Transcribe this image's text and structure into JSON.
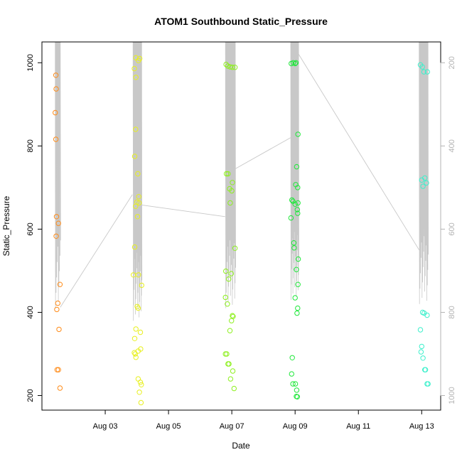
{
  "chart_data": {
    "type": "scatter",
    "title": "ATOM1 Southbound Static_Pressure",
    "xlabel": "Date",
    "ylabel": "Static_Pressure",
    "x_ticks": [
      {
        "label": "Aug 03",
        "value": 3
      },
      {
        "label": "Aug 05",
        "value": 5
      },
      {
        "label": "Aug 07",
        "value": 7
      },
      {
        "label": "Aug 09",
        "value": 9
      },
      {
        "label": "Aug 11",
        "value": 11
      },
      {
        "label": "Aug 13",
        "value": 13
      }
    ],
    "xlim": [
      1.0,
      13.6
    ],
    "ylim": [
      165,
      1050
    ],
    "y_ticks": [
      200,
      400,
      600,
      800,
      1000
    ],
    "secondary_axis": {
      "reversed": true,
      "lim": [
        1050,
        165
      ],
      "ticks": [
        200,
        400,
        600,
        800,
        1000
      ],
      "color": "#b3b3b3"
    },
    "grid": false,
    "legend": "none",
    "series": [
      {
        "color": "#ff8c1a",
        "points": [
          {
            "x": 1.44,
            "y": 970
          },
          {
            "x": 1.45,
            "y": 937
          },
          {
            "x": 1.42,
            "y": 880
          },
          {
            "x": 1.44,
            "y": 816
          },
          {
            "x": 1.46,
            "y": 630
          },
          {
            "x": 1.52,
            "y": 614
          },
          {
            "x": 1.45,
            "y": 583
          },
          {
            "x": 1.57,
            "y": 467
          },
          {
            "x": 1.5,
            "y": 422
          },
          {
            "x": 1.47,
            "y": 407
          },
          {
            "x": 1.54,
            "y": 359
          },
          {
            "x": 1.48,
            "y": 262
          },
          {
            "x": 1.52,
            "y": 262
          },
          {
            "x": 1.57,
            "y": 218
          }
        ]
      },
      {
        "color": "#e8f01f",
        "points": [
          {
            "x": 3.97,
            "y": 1012
          },
          {
            "x": 4.09,
            "y": 1010
          },
          {
            "x": 4.05,
            "y": 1005
          },
          {
            "x": 3.92,
            "y": 986
          },
          {
            "x": 3.97,
            "y": 965
          },
          {
            "x": 3.96,
            "y": 840
          },
          {
            "x": 3.93,
            "y": 775
          },
          {
            "x": 4.03,
            "y": 733
          },
          {
            "x": 4.06,
            "y": 678
          },
          {
            "x": 4.0,
            "y": 665
          },
          {
            "x": 4.07,
            "y": 663
          },
          {
            "x": 3.96,
            "y": 655
          },
          {
            "x": 4.02,
            "y": 630
          },
          {
            "x": 3.93,
            "y": 557
          },
          {
            "x": 3.89,
            "y": 490
          },
          {
            "x": 4.05,
            "y": 490
          },
          {
            "x": 4.15,
            "y": 465
          },
          {
            "x": 4.01,
            "y": 414
          },
          {
            "x": 4.04,
            "y": 410
          },
          {
            "x": 3.97,
            "y": 360
          },
          {
            "x": 4.11,
            "y": 352
          },
          {
            "x": 3.93,
            "y": 337
          },
          {
            "x": 4.12,
            "y": 312
          },
          {
            "x": 3.92,
            "y": 303
          },
          {
            "x": 3.95,
            "y": 300
          },
          {
            "x": 4.04,
            "y": 307
          },
          {
            "x": 3.97,
            "y": 292
          },
          {
            "x": 4.04,
            "y": 240
          },
          {
            "x": 4.11,
            "y": 232
          },
          {
            "x": 4.14,
            "y": 226
          },
          {
            "x": 4.08,
            "y": 208
          },
          {
            "x": 4.13,
            "y": 183
          }
        ]
      },
      {
        "color": "#8ef01f",
        "points": [
          {
            "x": 6.82,
            "y": 996
          },
          {
            "x": 6.87,
            "y": 992
          },
          {
            "x": 6.95,
            "y": 990
          },
          {
            "x": 7.02,
            "y": 989
          },
          {
            "x": 7.1,
            "y": 989
          },
          {
            "x": 6.83,
            "y": 733
          },
          {
            "x": 6.88,
            "y": 733
          },
          {
            "x": 7.02,
            "y": 712
          },
          {
            "x": 6.93,
            "y": 697
          },
          {
            "x": 7.0,
            "y": 692
          },
          {
            "x": 6.95,
            "y": 663
          },
          {
            "x": 7.1,
            "y": 554
          },
          {
            "x": 6.81,
            "y": 499
          },
          {
            "x": 6.98,
            "y": 493
          },
          {
            "x": 6.9,
            "y": 480
          },
          {
            "x": 6.8,
            "y": 436
          },
          {
            "x": 6.86,
            "y": 420
          },
          {
            "x": 7.02,
            "y": 392
          },
          {
            "x": 7.04,
            "y": 390
          },
          {
            "x": 6.99,
            "y": 380
          },
          {
            "x": 6.94,
            "y": 356
          },
          {
            "x": 6.8,
            "y": 300
          },
          {
            "x": 6.84,
            "y": 300
          },
          {
            "x": 6.88,
            "y": 276
          },
          {
            "x": 6.91,
            "y": 276
          },
          {
            "x": 7.03,
            "y": 259
          },
          {
            "x": 6.96,
            "y": 240
          },
          {
            "x": 7.07,
            "y": 217
          }
        ]
      },
      {
        "color": "#1fe83a",
        "points": [
          {
            "x": 8.88,
            "y": 998
          },
          {
            "x": 8.94,
            "y": 1000
          },
          {
            "x": 9.0,
            "y": 998
          },
          {
            "x": 9.03,
            "y": 1000
          },
          {
            "x": 9.09,
            "y": 828
          },
          {
            "x": 9.05,
            "y": 750
          },
          {
            "x": 9.02,
            "y": 707
          },
          {
            "x": 9.08,
            "y": 700
          },
          {
            "x": 8.9,
            "y": 670
          },
          {
            "x": 8.93,
            "y": 667
          },
          {
            "x": 9.09,
            "y": 663
          },
          {
            "x": 9.0,
            "y": 660
          },
          {
            "x": 9.07,
            "y": 647
          },
          {
            "x": 9.08,
            "y": 638
          },
          {
            "x": 8.87,
            "y": 627
          },
          {
            "x": 8.96,
            "y": 567
          },
          {
            "x": 8.97,
            "y": 555
          },
          {
            "x": 9.1,
            "y": 528
          },
          {
            "x": 9.04,
            "y": 503
          },
          {
            "x": 9.09,
            "y": 467
          },
          {
            "x": 9.0,
            "y": 435
          },
          {
            "x": 9.08,
            "y": 410
          },
          {
            "x": 9.06,
            "y": 398
          },
          {
            "x": 8.91,
            "y": 291
          },
          {
            "x": 8.89,
            "y": 252
          },
          {
            "x": 8.93,
            "y": 228
          },
          {
            "x": 9.01,
            "y": 228
          },
          {
            "x": 9.05,
            "y": 213
          },
          {
            "x": 9.04,
            "y": 198
          },
          {
            "x": 9.07,
            "y": 197
          }
        ]
      },
      {
        "color": "#3ef0cc",
        "points": [
          {
            "x": 12.96,
            "y": 995
          },
          {
            "x": 13.02,
            "y": 990
          },
          {
            "x": 13.07,
            "y": 978
          },
          {
            "x": 13.18,
            "y": 978
          },
          {
            "x": 13.1,
            "y": 723
          },
          {
            "x": 13.0,
            "y": 718
          },
          {
            "x": 13.15,
            "y": 711
          },
          {
            "x": 13.04,
            "y": 703
          },
          {
            "x": 13.03,
            "y": 400
          },
          {
            "x": 13.08,
            "y": 398
          },
          {
            "x": 13.17,
            "y": 393
          },
          {
            "x": 12.96,
            "y": 358
          },
          {
            "x": 13.0,
            "y": 318
          },
          {
            "x": 12.98,
            "y": 305
          },
          {
            "x": 13.04,
            "y": 290
          },
          {
            "x": 13.1,
            "y": 262
          },
          {
            "x": 13.12,
            "y": 262
          },
          {
            "x": 13.17,
            "y": 228
          },
          {
            "x": 13.2,
            "y": 228
          }
        ]
      }
    ]
  }
}
